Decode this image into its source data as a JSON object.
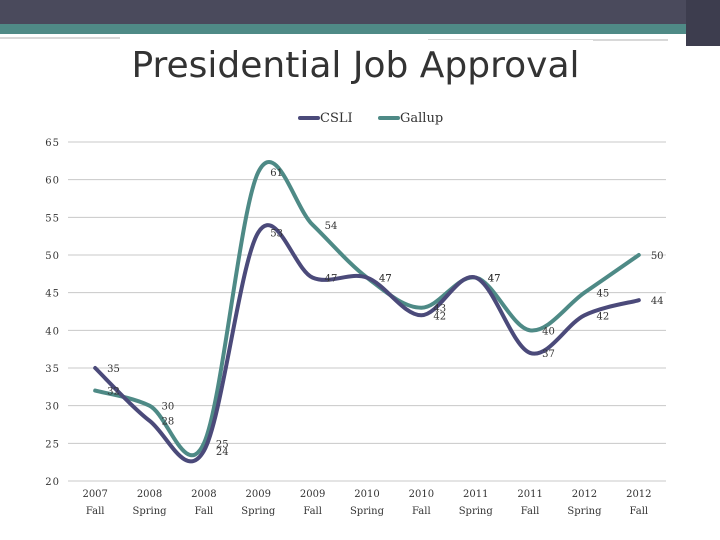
{
  "slide": {
    "title": "Presidential Job Approval"
  },
  "colors": {
    "csli": "#4b4a7a",
    "gallup": "#4e8a86",
    "grid": "#c8c8c8",
    "text": "#333333"
  },
  "chart_data": {
    "type": "line",
    "title": "Presidential Job Approval",
    "categories": [
      {
        "year": "2007",
        "season": "Fall"
      },
      {
        "year": "2008",
        "season": "Spring"
      },
      {
        "year": "2008",
        "season": "Fall"
      },
      {
        "year": "2009",
        "season": "Spring"
      },
      {
        "year": "2009",
        "season": "Fall"
      },
      {
        "year": "2010",
        "season": "Spring"
      },
      {
        "year": "2010",
        "season": "Fall"
      },
      {
        "year": "2011",
        "season": "Spring"
      },
      {
        "year": "2011",
        "season": "Fall"
      },
      {
        "year": "2012",
        "season": "Spring"
      },
      {
        "year": "2012",
        "season": "Fall"
      }
    ],
    "series": [
      {
        "name": "CSLI",
        "values": [
          35,
          28,
          24,
          53,
          47,
          47,
          42,
          47,
          37,
          42,
          44
        ]
      },
      {
        "name": "Gallup",
        "values": [
          32,
          30,
          25,
          61,
          54,
          47,
          43,
          47,
          40,
          45,
          50
        ]
      }
    ],
    "ylim": [
      20,
      65
    ],
    "yticks": [
      20,
      25,
      30,
      35,
      40,
      45,
      50,
      55,
      60,
      65
    ],
    "grid": true,
    "legend": "top",
    "smooth": true
  }
}
